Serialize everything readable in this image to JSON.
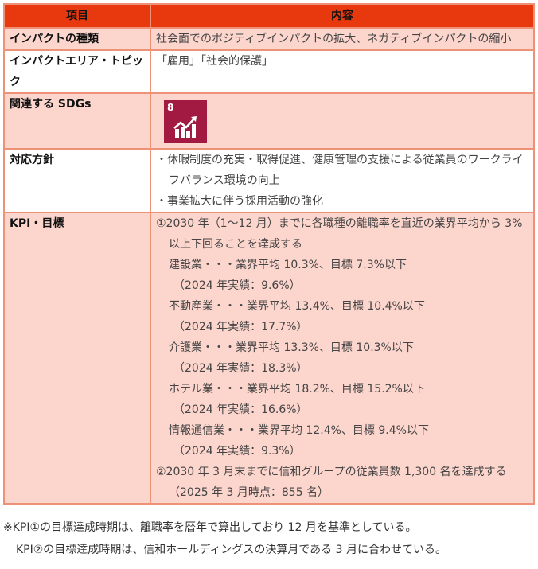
{
  "header": {
    "col1": "項目",
    "col2": "内容"
  },
  "rows": {
    "impact_type": {
      "label": "インパクトの種類",
      "content": "社会面でのポジティブインパクトの拡大、ネガティブインパクトの縮小"
    },
    "impact_area": {
      "label": "インパクトエリア・トピック",
      "content": "「雇用」「社会的保護」"
    },
    "sdgs": {
      "label": "関連する SDGs",
      "icon": "sdg-8-decent-work-economic-growth-icon",
      "icon_number": "8",
      "icon_color": "#A21942"
    },
    "policy": {
      "label": "対応方針",
      "items": [
        "・休暇制度の充実・取得促進、健康管理の支援による従業員のワークライフバランス環境の向上",
        "・事業拡大に伴う採用活動の強化"
      ]
    },
    "kpi": {
      "label": "KPI・目標",
      "kpi1": "①2030 年（1～12 月）までに各職種の離職率を直近の業界平均から 3%以上下回ることを達成する",
      "industries": [
        {
          "line": "建設業・・・業界平均 10.3%、目標 7.3%以下",
          "actual": "（2024 年実績：9.6%）"
        },
        {
          "line": "不動産業・・・業界平均 13.4%、目標 10.4%以下",
          "actual": "（2024 年実績：17.7%）"
        },
        {
          "line": "介護業・・・業界平均 13.3%、目標 10.3%以下",
          "actual": "（2024 年実績：18.3%）"
        },
        {
          "line": "ホテル業・・・業界平均 18.2%、目標 15.2%以下",
          "actual": "（2024 年実績：16.6%）"
        },
        {
          "line": "情報通信業・・・業界平均 12.4%、目標 9.4%以下",
          "actual": "（2024 年実績：9.3%）"
        }
      ],
      "kpi2": "②2030 年 3 月末までに信和グループの従業員数 1,300 名を達成する（2025 年 3 月時点：855 名）"
    }
  },
  "notes": [
    "※KPI①の目標達成時期は、離職率を暦年で算出しており 12 月を基準としている。",
    "KPI②の目標達成時期は、信和ホールディングスの決算月である 3 月に合わせている。"
  ],
  "colors": {
    "header": "#E8380D",
    "pink_row": "#FCD5CD",
    "border": "#ED9277"
  }
}
